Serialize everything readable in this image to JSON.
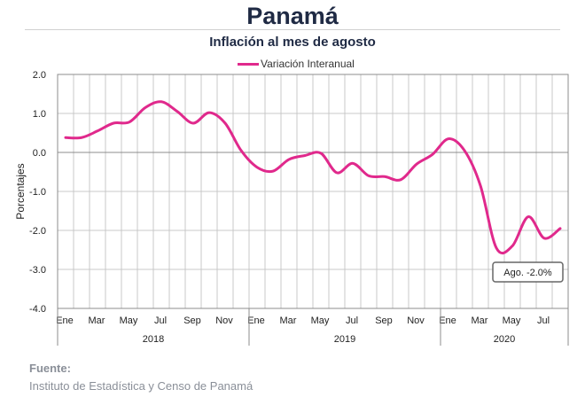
{
  "title": "Panamá",
  "subtitle": "Inflación al mes de agosto",
  "footer": {
    "label": "Fuente:",
    "source": "Instituto de Estadística y Censo de Panamá"
  },
  "colors": {
    "series": "#e0298c",
    "grid": "#c8c8c8",
    "zero_line": "#8c8c8c",
    "text": "#1f2a44"
  },
  "chart_data": {
    "type": "line",
    "ylabel": "Porcentajes",
    "ylim": [
      -4.0,
      2.0
    ],
    "y_ticks": [
      "2.0",
      "1.0",
      "0.0",
      "-1.0",
      "-2.0",
      "-3.0",
      "-4.0"
    ],
    "x": [
      "2018-01",
      "2018-02",
      "2018-03",
      "2018-04",
      "2018-05",
      "2018-06",
      "2018-07",
      "2018-08",
      "2018-09",
      "2018-10",
      "2018-11",
      "2018-12",
      "2019-01",
      "2019-02",
      "2019-03",
      "2019-04",
      "2019-05",
      "2019-06",
      "2019-07",
      "2019-08",
      "2019-09",
      "2019-10",
      "2019-11",
      "2019-12",
      "2020-01",
      "2020-02",
      "2020-03",
      "2020-04",
      "2020-05",
      "2020-06",
      "2020-07",
      "2020-08"
    ],
    "month_labels": [
      "Ene",
      "Mar",
      "May",
      "Jul",
      "Sep",
      "Nov",
      "Ene",
      "Mar",
      "May",
      "Jul",
      "Sep",
      "Nov",
      "Ene",
      "Mar",
      "May",
      "Jul"
    ],
    "year_labels": [
      "2018",
      "2019",
      "2020"
    ],
    "legend_position": "top-center",
    "grid": true,
    "series": [
      {
        "name": "Variación Interanual",
        "values": [
          0.38,
          0.38,
          0.55,
          0.75,
          0.78,
          1.15,
          1.3,
          1.05,
          0.75,
          1.02,
          0.75,
          0.05,
          -0.38,
          -0.48,
          -0.18,
          -0.08,
          -0.02,
          -0.52,
          -0.28,
          -0.6,
          -0.62,
          -0.7,
          -0.3,
          -0.05,
          0.35,
          0.05,
          -0.85,
          -2.45,
          -2.4,
          -1.65,
          -2.2,
          -1.95
        ]
      }
    ],
    "annotations": [
      {
        "text": "Ago. -2.0%",
        "x": "2020-08",
        "y": -1.95
      }
    ]
  }
}
